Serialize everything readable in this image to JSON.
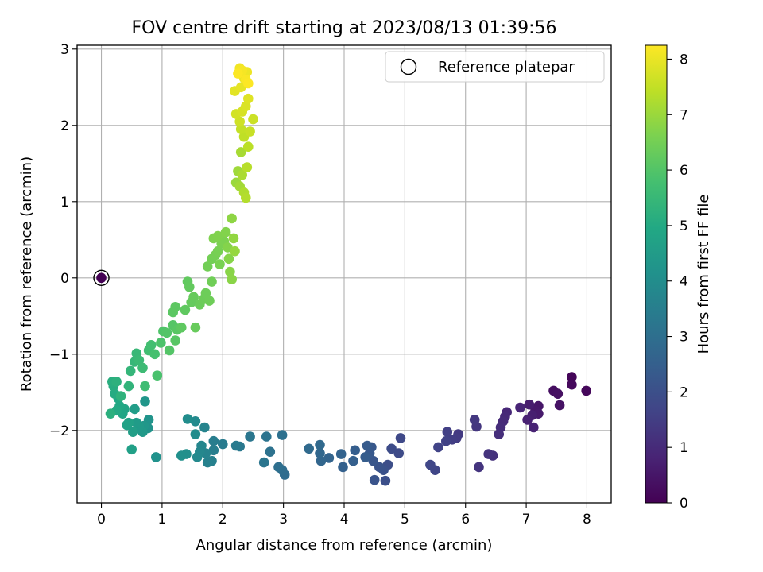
{
  "chart_data": {
    "type": "scatter",
    "title": "FOV centre drift starting at 2023/08/13 01:39:56",
    "xlabel": "Angular distance from reference (arcmin)",
    "ylabel": "Rotation from reference (arcmin)",
    "xlim": [
      -0.4,
      8.4
    ],
    "ylim": [
      -2.95,
      3.05
    ],
    "xticks": [
      0,
      1,
      2,
      3,
      4,
      5,
      6,
      7,
      8
    ],
    "xtick_labels": [
      "0",
      "1",
      "2",
      "3",
      "4",
      "5",
      "6",
      "7",
      "8"
    ],
    "yticks": [
      -2,
      -1,
      0,
      1,
      2,
      3
    ],
    "ytick_labels": [
      "−2",
      "−1",
      "0",
      "1",
      "2",
      "3"
    ],
    "grid": true,
    "legend": {
      "position": "top-right",
      "entries": [
        {
          "label": "Reference platepar",
          "marker": "hollow-circle"
        }
      ]
    },
    "reference_point": {
      "x": 0,
      "y": 0
    },
    "colorbar": {
      "label": "Hours from first FF file",
      "colormap": "viridis",
      "range": [
        0,
        8.25
      ],
      "ticks": [
        0,
        1,
        2,
        3,
        4,
        5,
        6,
        7,
        8
      ],
      "tick_labels": [
        "0",
        "1",
        "2",
        "3",
        "4",
        "5",
        "6",
        "7",
        "8"
      ]
    },
    "points": [
      {
        "x": 0.0,
        "y": 0.0,
        "h": 0.0
      },
      {
        "x": 7.75,
        "y": -1.3,
        "h": 0.1
      },
      {
        "x": 7.99,
        "y": -1.48,
        "h": 0.15
      },
      {
        "x": 7.75,
        "y": -1.4,
        "h": 0.2
      },
      {
        "x": 7.45,
        "y": -1.48,
        "h": 0.3
      },
      {
        "x": 7.52,
        "y": -1.52,
        "h": 0.35
      },
      {
        "x": 7.55,
        "y": -1.67,
        "h": 0.4
      },
      {
        "x": 7.2,
        "y": -1.68,
        "h": 0.5
      },
      {
        "x": 7.15,
        "y": -1.74,
        "h": 0.55
      },
      {
        "x": 7.2,
        "y": -1.78,
        "h": 0.6
      },
      {
        "x": 7.05,
        "y": -1.66,
        "h": 0.65
      },
      {
        "x": 7.1,
        "y": -1.8,
        "h": 0.7
      },
      {
        "x": 7.02,
        "y": -1.86,
        "h": 0.75
      },
      {
        "x": 7.12,
        "y": -1.96,
        "h": 0.8
      },
      {
        "x": 6.9,
        "y": -1.7,
        "h": 0.85
      },
      {
        "x": 6.68,
        "y": -1.76,
        "h": 0.9
      },
      {
        "x": 6.65,
        "y": -1.82,
        "h": 0.95
      },
      {
        "x": 6.62,
        "y": -1.88,
        "h": 1.0
      },
      {
        "x": 6.58,
        "y": -1.96,
        "h": 1.05
      },
      {
        "x": 6.55,
        "y": -2.05,
        "h": 1.1
      },
      {
        "x": 6.45,
        "y": -2.33,
        "h": 1.15
      },
      {
        "x": 6.38,
        "y": -2.31,
        "h": 1.2
      },
      {
        "x": 6.22,
        "y": -2.48,
        "h": 1.25
      },
      {
        "x": 6.18,
        "y": -1.95,
        "h": 1.3
      },
      {
        "x": 6.15,
        "y": -1.86,
        "h": 1.35
      },
      {
        "x": 5.88,
        "y": -2.05,
        "h": 1.4
      },
      {
        "x": 5.85,
        "y": -2.1,
        "h": 1.45
      },
      {
        "x": 5.78,
        "y": -2.12,
        "h": 1.5
      },
      {
        "x": 5.7,
        "y": -2.02,
        "h": 1.55
      },
      {
        "x": 5.68,
        "y": -2.14,
        "h": 1.6
      },
      {
        "x": 5.55,
        "y": -2.22,
        "h": 1.65
      },
      {
        "x": 5.5,
        "y": -2.52,
        "h": 1.7
      },
      {
        "x": 5.42,
        "y": -2.45,
        "h": 1.75
      },
      {
        "x": 4.93,
        "y": -2.1,
        "h": 1.8
      },
      {
        "x": 4.9,
        "y": -2.3,
        "h": 1.85
      },
      {
        "x": 4.78,
        "y": -2.24,
        "h": 1.9
      },
      {
        "x": 4.72,
        "y": -2.45,
        "h": 1.95
      },
      {
        "x": 4.68,
        "y": -2.66,
        "h": 2.0
      },
      {
        "x": 4.65,
        "y": -2.52,
        "h": 2.05
      },
      {
        "x": 4.58,
        "y": -2.48,
        "h": 2.1
      },
      {
        "x": 4.5,
        "y": -2.65,
        "h": 2.15
      },
      {
        "x": 4.48,
        "y": -2.4,
        "h": 2.2
      },
      {
        "x": 4.45,
        "y": -2.22,
        "h": 2.25
      },
      {
        "x": 4.42,
        "y": -2.3,
        "h": 2.3
      },
      {
        "x": 4.38,
        "y": -2.2,
        "h": 2.35
      },
      {
        "x": 4.35,
        "y": -2.35,
        "h": 2.4
      },
      {
        "x": 4.18,
        "y": -2.26,
        "h": 2.45
      },
      {
        "x": 4.15,
        "y": -2.4,
        "h": 2.5
      },
      {
        "x": 3.98,
        "y": -2.48,
        "h": 2.55
      },
      {
        "x": 3.95,
        "y": -2.31,
        "h": 2.6
      },
      {
        "x": 3.75,
        "y": -2.36,
        "h": 2.65
      },
      {
        "x": 3.62,
        "y": -2.4,
        "h": 2.7
      },
      {
        "x": 3.6,
        "y": -2.3,
        "h": 2.75
      },
      {
        "x": 3.6,
        "y": -2.19,
        "h": 2.8
      },
      {
        "x": 3.42,
        "y": -2.24,
        "h": 2.85
      },
      {
        "x": 3.02,
        "y": -2.58,
        "h": 2.9
      },
      {
        "x": 2.98,
        "y": -2.52,
        "h": 2.95
      },
      {
        "x": 2.92,
        "y": -2.48,
        "h": 3.0
      },
      {
        "x": 2.98,
        "y": -2.06,
        "h": 3.05
      },
      {
        "x": 2.78,
        "y": -2.28,
        "h": 3.1
      },
      {
        "x": 2.72,
        "y": -2.08,
        "h": 3.15
      },
      {
        "x": 2.68,
        "y": -2.42,
        "h": 3.2
      },
      {
        "x": 2.45,
        "y": -2.08,
        "h": 3.25
      },
      {
        "x": 2.28,
        "y": -2.21,
        "h": 3.3
      },
      {
        "x": 2.22,
        "y": -2.2,
        "h": 3.35
      },
      {
        "x": 2.0,
        "y": -2.18,
        "h": 3.4
      },
      {
        "x": 1.85,
        "y": -2.14,
        "h": 3.45
      },
      {
        "x": 1.85,
        "y": -2.26,
        "h": 3.5
      },
      {
        "x": 1.82,
        "y": -2.4,
        "h": 3.55
      },
      {
        "x": 1.75,
        "y": -2.42,
        "h": 3.6
      },
      {
        "x": 1.72,
        "y": -2.3,
        "h": 3.65
      },
      {
        "x": 1.7,
        "y": -1.96,
        "h": 3.7
      },
      {
        "x": 1.65,
        "y": -2.2,
        "h": 3.75
      },
      {
        "x": 1.62,
        "y": -2.28,
        "h": 3.8
      },
      {
        "x": 1.58,
        "y": -2.35,
        "h": 3.85
      },
      {
        "x": 1.55,
        "y": -1.88,
        "h": 3.9
      },
      {
        "x": 1.55,
        "y": -2.05,
        "h": 3.95
      },
      {
        "x": 1.42,
        "y": -1.85,
        "h": 4.0
      },
      {
        "x": 1.4,
        "y": -2.31,
        "h": 4.05
      },
      {
        "x": 1.32,
        "y": -2.33,
        "h": 4.1
      },
      {
        "x": 0.9,
        "y": -2.35,
        "h": 4.15
      },
      {
        "x": 0.77,
        "y": -1.97,
        "h": 4.2
      },
      {
        "x": 0.78,
        "y": -1.86,
        "h": 4.25
      },
      {
        "x": 0.72,
        "y": -1.62,
        "h": 4.3
      },
      {
        "x": 0.7,
        "y": -1.94,
        "h": 4.35
      },
      {
        "x": 0.68,
        "y": -2.02,
        "h": 4.4
      },
      {
        "x": 0.62,
        "y": -1.95,
        "h": 4.45
      },
      {
        "x": 0.58,
        "y": -1.9,
        "h": 4.5
      },
      {
        "x": 0.55,
        "y": -1.72,
        "h": 4.55
      },
      {
        "x": 0.52,
        "y": -2.02,
        "h": 4.6
      },
      {
        "x": 0.5,
        "y": -2.25,
        "h": 4.65
      },
      {
        "x": 0.45,
        "y": -1.9,
        "h": 4.7
      },
      {
        "x": 0.42,
        "y": -1.93,
        "h": 4.75
      },
      {
        "x": 0.38,
        "y": -1.72,
        "h": 4.8
      },
      {
        "x": 0.35,
        "y": -1.78,
        "h": 4.85
      },
      {
        "x": 0.3,
        "y": -1.68,
        "h": 4.9
      },
      {
        "x": 0.28,
        "y": -1.58,
        "h": 4.95
      },
      {
        "x": 0.25,
        "y": -1.74,
        "h": 5.0
      },
      {
        "x": 0.22,
        "y": -1.52,
        "h": 5.05
      },
      {
        "x": 0.2,
        "y": -1.42,
        "h": 5.1
      },
      {
        "x": 0.18,
        "y": -1.36,
        "h": 5.15
      },
      {
        "x": 0.15,
        "y": -1.78,
        "h": 5.2
      },
      {
        "x": 0.25,
        "y": -1.36,
        "h": 5.25
      },
      {
        "x": 0.32,
        "y": -1.55,
        "h": 5.3
      },
      {
        "x": 0.45,
        "y": -1.42,
        "h": 5.35
      },
      {
        "x": 0.48,
        "y": -1.22,
        "h": 5.4
      },
      {
        "x": 0.55,
        "y": -1.1,
        "h": 5.45
      },
      {
        "x": 0.58,
        "y": -0.99,
        "h": 5.5
      },
      {
        "x": 0.62,
        "y": -1.08,
        "h": 5.55
      },
      {
        "x": 0.68,
        "y": -1.18,
        "h": 5.6
      },
      {
        "x": 0.72,
        "y": -1.42,
        "h": 5.65
      },
      {
        "x": 0.78,
        "y": -0.95,
        "h": 5.7
      },
      {
        "x": 0.82,
        "y": -0.88,
        "h": 5.75
      },
      {
        "x": 0.88,
        "y": -1.0,
        "h": 5.8
      },
      {
        "x": 0.92,
        "y": -1.28,
        "h": 5.85
      },
      {
        "x": 0.98,
        "y": -0.85,
        "h": 5.9
      },
      {
        "x": 1.02,
        "y": -0.7,
        "h": 5.95
      },
      {
        "x": 1.08,
        "y": -0.72,
        "h": 6.0
      },
      {
        "x": 1.12,
        "y": -0.95,
        "h": 6.02
      },
      {
        "x": 1.18,
        "y": -0.62,
        "h": 6.05
      },
      {
        "x": 1.22,
        "y": -0.82,
        "h": 6.08
      },
      {
        "x": 1.25,
        "y": -0.68,
        "h": 6.1
      },
      {
        "x": 1.18,
        "y": -0.45,
        "h": 6.12
      },
      {
        "x": 1.22,
        "y": -0.38,
        "h": 6.15
      },
      {
        "x": 1.32,
        "y": -0.65,
        "h": 6.18
      },
      {
        "x": 1.38,
        "y": -0.42,
        "h": 6.2
      },
      {
        "x": 1.42,
        "y": -0.05,
        "h": 6.22
      },
      {
        "x": 1.45,
        "y": -0.12,
        "h": 6.25
      },
      {
        "x": 1.48,
        "y": -0.32,
        "h": 6.28
      },
      {
        "x": 1.52,
        "y": -0.25,
        "h": 6.3
      },
      {
        "x": 1.55,
        "y": -0.65,
        "h": 6.32
      },
      {
        "x": 1.62,
        "y": -0.35,
        "h": 6.35
      },
      {
        "x": 1.68,
        "y": -0.28,
        "h": 6.38
      },
      {
        "x": 1.72,
        "y": -0.2,
        "h": 6.4
      },
      {
        "x": 1.78,
        "y": -0.3,
        "h": 6.42
      },
      {
        "x": 1.82,
        "y": -0.05,
        "h": 6.45
      },
      {
        "x": 1.75,
        "y": 0.15,
        "h": 6.48
      },
      {
        "x": 1.82,
        "y": 0.25,
        "h": 6.5
      },
      {
        "x": 1.88,
        "y": 0.3,
        "h": 6.52
      },
      {
        "x": 1.92,
        "y": 0.35,
        "h": 6.55
      },
      {
        "x": 1.95,
        "y": 0.18,
        "h": 6.58
      },
      {
        "x": 1.98,
        "y": 0.45,
        "h": 6.6
      },
      {
        "x": 2.02,
        "y": 0.48,
        "h": 6.62
      },
      {
        "x": 1.85,
        "y": 0.52,
        "h": 6.65
      },
      {
        "x": 1.92,
        "y": 0.55,
        "h": 6.68
      },
      {
        "x": 2.05,
        "y": 0.6,
        "h": 6.7
      },
      {
        "x": 2.08,
        "y": 0.4,
        "h": 6.72
      },
      {
        "x": 2.1,
        "y": 0.25,
        "h": 6.75
      },
      {
        "x": 2.12,
        "y": 0.08,
        "h": 6.78
      },
      {
        "x": 2.15,
        "y": -0.02,
        "h": 6.8
      },
      {
        "x": 2.15,
        "y": 0.78,
        "h": 6.85
      },
      {
        "x": 2.18,
        "y": 0.52,
        "h": 6.9
      },
      {
        "x": 2.2,
        "y": 0.35,
        "h": 6.95
      },
      {
        "x": 2.22,
        "y": 1.25,
        "h": 7.0
      },
      {
        "x": 2.25,
        "y": 1.4,
        "h": 7.05
      },
      {
        "x": 2.28,
        "y": 1.2,
        "h": 7.1
      },
      {
        "x": 2.3,
        "y": 1.65,
        "h": 7.15
      },
      {
        "x": 2.32,
        "y": 1.35,
        "h": 7.2
      },
      {
        "x": 2.35,
        "y": 1.12,
        "h": 7.25
      },
      {
        "x": 2.38,
        "y": 1.05,
        "h": 7.3
      },
      {
        "x": 2.4,
        "y": 1.45,
        "h": 7.35
      },
      {
        "x": 2.42,
        "y": 1.72,
        "h": 7.4
      },
      {
        "x": 2.35,
        "y": 1.85,
        "h": 7.45
      },
      {
        "x": 2.3,
        "y": 1.95,
        "h": 7.5
      },
      {
        "x": 2.45,
        "y": 1.92,
        "h": 7.55
      },
      {
        "x": 2.5,
        "y": 2.08,
        "h": 7.6
      },
      {
        "x": 2.28,
        "y": 2.05,
        "h": 7.65
      },
      {
        "x": 2.22,
        "y": 2.15,
        "h": 7.7
      },
      {
        "x": 2.32,
        "y": 2.18,
        "h": 7.75
      },
      {
        "x": 2.38,
        "y": 2.25,
        "h": 7.8
      },
      {
        "x": 2.42,
        "y": 2.35,
        "h": 7.85
      },
      {
        "x": 2.2,
        "y": 2.45,
        "h": 7.9
      },
      {
        "x": 2.3,
        "y": 2.5,
        "h": 7.95
      },
      {
        "x": 2.35,
        "y": 2.62,
        "h": 8.0
      },
      {
        "x": 2.4,
        "y": 2.7,
        "h": 8.05
      },
      {
        "x": 2.28,
        "y": 2.75,
        "h": 8.1
      },
      {
        "x": 2.32,
        "y": 2.72,
        "h": 8.15
      },
      {
        "x": 2.38,
        "y": 2.6,
        "h": 8.2
      },
      {
        "x": 2.25,
        "y": 2.68,
        "h": 8.22
      },
      {
        "x": 2.42,
        "y": 2.55,
        "h": 8.24
      }
    ]
  }
}
